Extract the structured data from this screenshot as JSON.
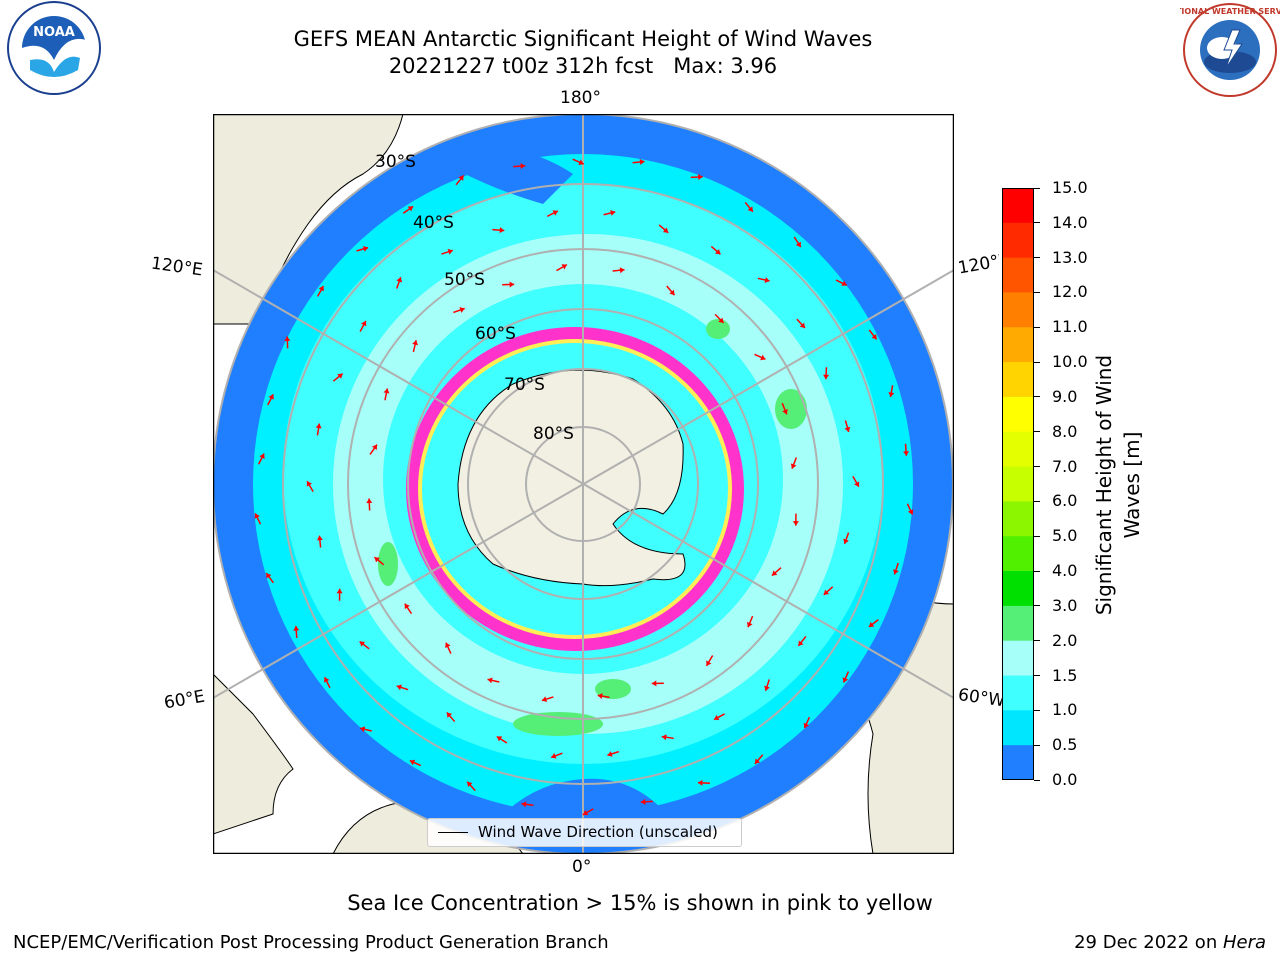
{
  "header": {
    "title_line1": "GEFS MEAN Antarctic Significant Height of Wind Waves",
    "title_line2": "20221227 t00z 312h fcst   Max: 3.96"
  },
  "logos": {
    "left": {
      "name": "noaa-logo",
      "text": "NOAA"
    },
    "right": {
      "name": "national-weather-service-logo",
      "text": "NATIONAL WEATHER SERVICE"
    }
  },
  "map": {
    "projection": "south-polar-stereographic",
    "longitude_labels": {
      "top": "180°",
      "bottom": "0°",
      "left_upper": "120°E",
      "left_lower": "60°E",
      "right_upper": "120°W",
      "right_lower": "60°W"
    },
    "latitude_labels": [
      "30°S",
      "40°S",
      "50°S",
      "60°S",
      "70°S",
      "80°S"
    ],
    "colors": {
      "land": "#eeecdc",
      "ice_sheet": "#f2f0e2",
      "ocean_deep": "#1f7fff",
      "ocean_mid": "#00f0ff",
      "ocean_light": "#a6fff8",
      "arrow": "#ff0000",
      "grid": "#b0b0b0",
      "sea_ice_pink": "#ff33cc",
      "sea_ice_yellow": "#ffee55",
      "green_patch": "#55ee77"
    }
  },
  "legend": {
    "text": "Wind Wave Direction (unscaled)"
  },
  "colorbar": {
    "label_line1": "Significant Height of Wind",
    "label_line2": "Waves [m]",
    "ticks": [
      "15.0",
      "14.0",
      "13.0",
      "12.0",
      "11.0",
      "10.0",
      "9.0",
      "8.0",
      "7.0",
      "6.0",
      "5.0",
      "4.0",
      "3.0",
      "2.0",
      "1.5",
      "1.0",
      "0.5",
      "0.0"
    ],
    "colors": [
      "#ff0000",
      "#ff2a00",
      "#ff5500",
      "#ff8000",
      "#ffaa00",
      "#ffd400",
      "#ffff00",
      "#e4ff00",
      "#c8ff00",
      "#8cf500",
      "#50f000",
      "#00e000",
      "#55ee77",
      "#a6fff8",
      "#40ffff",
      "#00e6ff",
      "#1f7fff",
      "#0010ff"
    ]
  },
  "caption": "Sea Ice Concentration > 15% is shown in pink to yellow",
  "footer": {
    "left": "NCEP/EMC/Verification Post Processing Product Generation Branch",
    "right_prefix": "29 Dec 2022 on ",
    "right_italic": "Hera"
  }
}
